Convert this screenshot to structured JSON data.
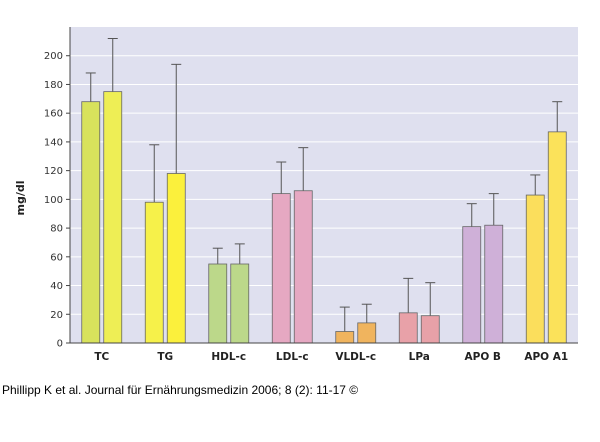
{
  "chart_data": {
    "type": "bar",
    "ylabel": "mg/dl",
    "ylim": [
      0,
      220
    ],
    "yticks": [
      0,
      20,
      40,
      60,
      80,
      100,
      120,
      140,
      160,
      180,
      200
    ],
    "grid": true,
    "categories": [
      "TC",
      "TG",
      "HDL-c",
      "LDL-c",
      "VLDL-c",
      "LPa",
      "APO B",
      "APO A1"
    ],
    "series": [
      {
        "values": [
          168,
          98,
          55,
          104,
          8,
          21,
          81,
          103
        ],
        "errors": [
          20,
          40,
          11,
          22,
          17,
          24,
          16,
          14
        ]
      },
      {
        "values": [
          175,
          118,
          55,
          106,
          14,
          19,
          82,
          147
        ],
        "errors": [
          37,
          76,
          14,
          30,
          13,
          23,
          22,
          21
        ]
      }
    ],
    "colors": [
      [
        "#d8e25c",
        "#eeee55"
      ],
      [
        "#f6f14a",
        "#fbf03c"
      ],
      [
        "#bcd88a",
        "#bcd88a"
      ],
      [
        "#e6a8c2",
        "#e6a8c2"
      ],
      [
        "#f0b45e",
        "#f0b45e"
      ],
      [
        "#e8a1a8",
        "#e8a1a8"
      ],
      [
        "#cfb0d8",
        "#cfb0d8"
      ],
      [
        "#fbde5c",
        "#fbe25a"
      ]
    ],
    "plot_background": "#dfe0ef",
    "grid_color": "#ffffff"
  },
  "footer": {
    "citation": "Phillipp K et al. Journal für Ernährungsmedizin 2006; 8 (2): 11-17 ©"
  }
}
